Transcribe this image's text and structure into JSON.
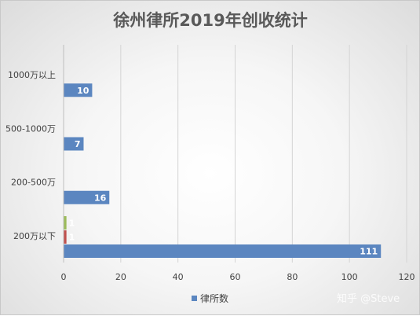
{
  "chart_data": {
    "type": "bar",
    "orientation": "horizontal",
    "title": "徐州律所2019年创收统计",
    "categories": [
      "200万以下",
      "200-500万",
      "500-1000万",
      "1000万以上"
    ],
    "series": [
      {
        "name": "律所数",
        "values": [
          111,
          16,
          7,
          10
        ],
        "color": "#5b86c0"
      },
      {
        "name": "",
        "values": [
          1,
          null,
          null,
          null
        ],
        "color": "#c0504d"
      },
      {
        "name": "",
        "values": [
          1,
          null,
          null,
          null
        ],
        "color": "#9bbb59"
      }
    ],
    "xlim": [
      0,
      120
    ],
    "xticks": [
      0,
      20,
      40,
      60,
      80,
      100,
      120
    ],
    "grid": true,
    "legend": "bottom",
    "legend_entries": [
      "律所数"
    ]
  },
  "watermark": "知乎 @Steve"
}
